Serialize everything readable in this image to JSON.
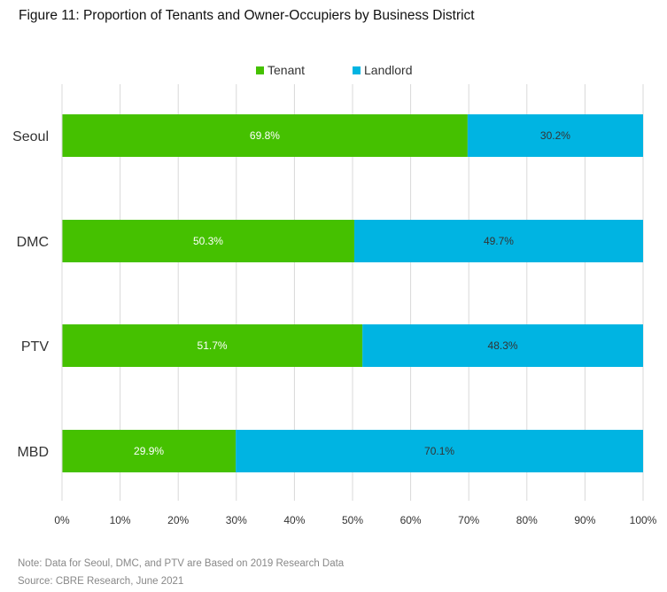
{
  "figure_title": "Figure 11: Proportion of Tenants and Owner-Occupiers by Business District",
  "colors": {
    "tenant": "#45c100",
    "landlord": "#00b4e2",
    "grid": "#d9d9d9"
  },
  "footnotes": {
    "note": "Note: Data for Seoul, DMC, and PTV are Based on 2019 Research Data",
    "source": "Source: CBRE Research, June 2021"
  },
  "chart_data": {
    "type": "bar",
    "orientation": "horizontal",
    "stacked": "percent",
    "title": "",
    "xlabel": "",
    "ylabel": "",
    "categories": [
      "Seoul",
      "DMC",
      "PTV",
      "MBD"
    ],
    "series": [
      {
        "name": "Tenant",
        "values": [
          69.8,
          50.3,
          51.7,
          29.9
        ],
        "labels": [
          "69.8%",
          "50.3%",
          "51.7%",
          "29.9%"
        ],
        "label_color": "#ffffff"
      },
      {
        "name": "Landlord",
        "values": [
          30.2,
          49.7,
          48.3,
          70.1
        ],
        "labels": [
          "30.2%",
          "49.7%",
          "48.3%",
          "70.1%"
        ],
        "label_color": "#333333"
      }
    ],
    "xlim": [
      0,
      100
    ],
    "ticks": [
      "0%",
      "10%",
      "20%",
      "30%",
      "40%",
      "50%",
      "60%",
      "70%",
      "80%",
      "90%",
      "100%"
    ],
    "grid": true,
    "legend": "top-center"
  }
}
